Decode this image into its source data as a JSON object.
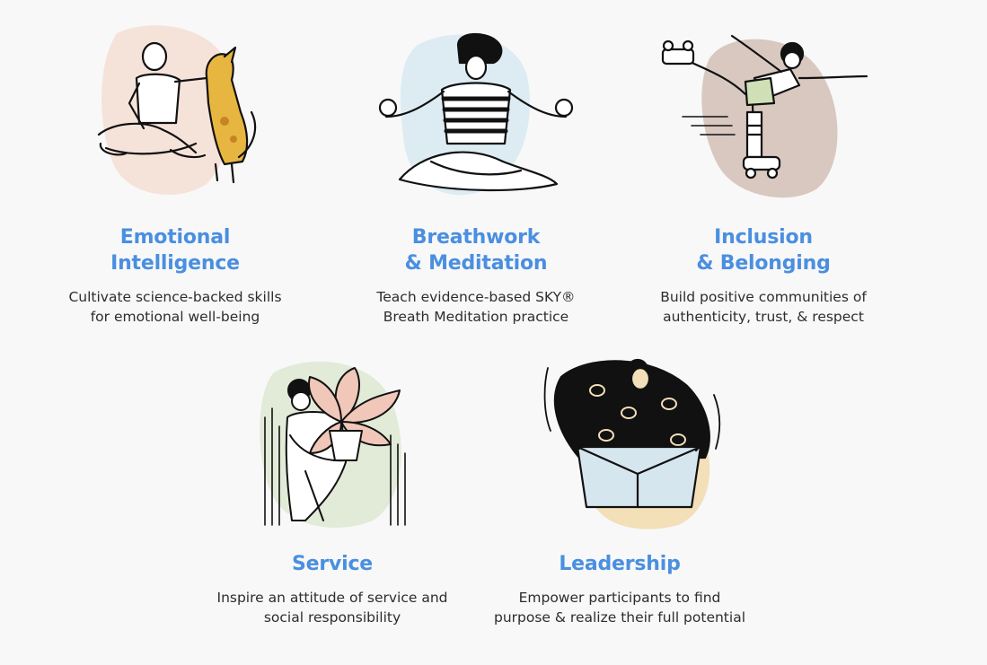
{
  "colors": {
    "title": "#4a8fe0",
    "text": "#2d2d2d",
    "background": "#f8f8f8",
    "blob_peach": "#f5e3da",
    "blob_blue": "#dcecf2",
    "blob_mauve": "#d9c8c0",
    "blob_sage": "#e2ead8",
    "blob_yellow": "#f3dfb8"
  },
  "pillars": [
    {
      "title": "Emotional\nIntelligence",
      "description": "Cultivate science-backed skills\nfor emotional well-being",
      "illustration": "person-with-dog-illustration"
    },
    {
      "title": "Breathwork\n& Meditation",
      "description": "Teach evidence-based SKY®\nBreath Meditation practice",
      "illustration": "meditating-person-illustration"
    },
    {
      "title": "Inclusion\n& Belonging",
      "description": "Build positive communities of\nauthenticity, trust, & respect",
      "illustration": "roller-skater-illustration"
    },
    {
      "title": "Service",
      "description": "Inspire an attitude of service and\nsocial responsibility",
      "illustration": "person-holding-plant-illustration"
    },
    {
      "title": "Leadership",
      "description": "Empower participants to find\npurpose & realize their full potential",
      "illustration": "person-lifting-box-illustration"
    }
  ]
}
